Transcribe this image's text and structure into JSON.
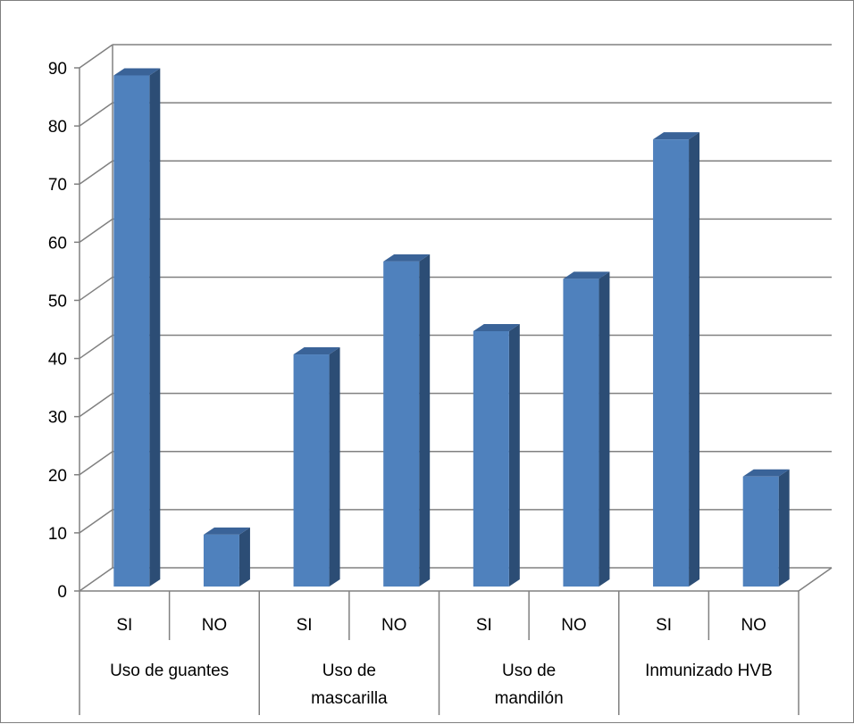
{
  "chart_data": {
    "type": "bar",
    "title": "",
    "xlabel": "",
    "ylabel": "",
    "groups": [
      {
        "label": "Uso de guantes",
        "label_lines": [
          "Uso de guantes"
        ]
      },
      {
        "label": "Uso de mascarilla",
        "label_lines": [
          "Uso de",
          "mascarilla"
        ]
      },
      {
        "label": "Uso de mandilón",
        "label_lines": [
          "Uso de",
          "mandilón"
        ]
      },
      {
        "label": "Inmunizado HVB",
        "label_lines": [
          "Inmunizado HVB"
        ]
      }
    ],
    "categories": [
      "SI",
      "NO",
      "SI",
      "NO",
      "SI",
      "NO",
      "SI",
      "NO"
    ],
    "values": [
      89,
      10,
      41,
      57,
      45,
      54,
      78,
      20
    ],
    "ylim": [
      0,
      90
    ],
    "yticks": [
      0,
      10,
      20,
      30,
      40,
      50,
      60,
      70,
      80,
      90
    ],
    "grid": true,
    "legend": "none",
    "colors": {
      "bar_front": "#4f81bd",
      "bar_side": "#2c4d75",
      "bar_top": "#3a6398",
      "gridline": "#808080",
      "frame": "#7f7f7f"
    }
  }
}
